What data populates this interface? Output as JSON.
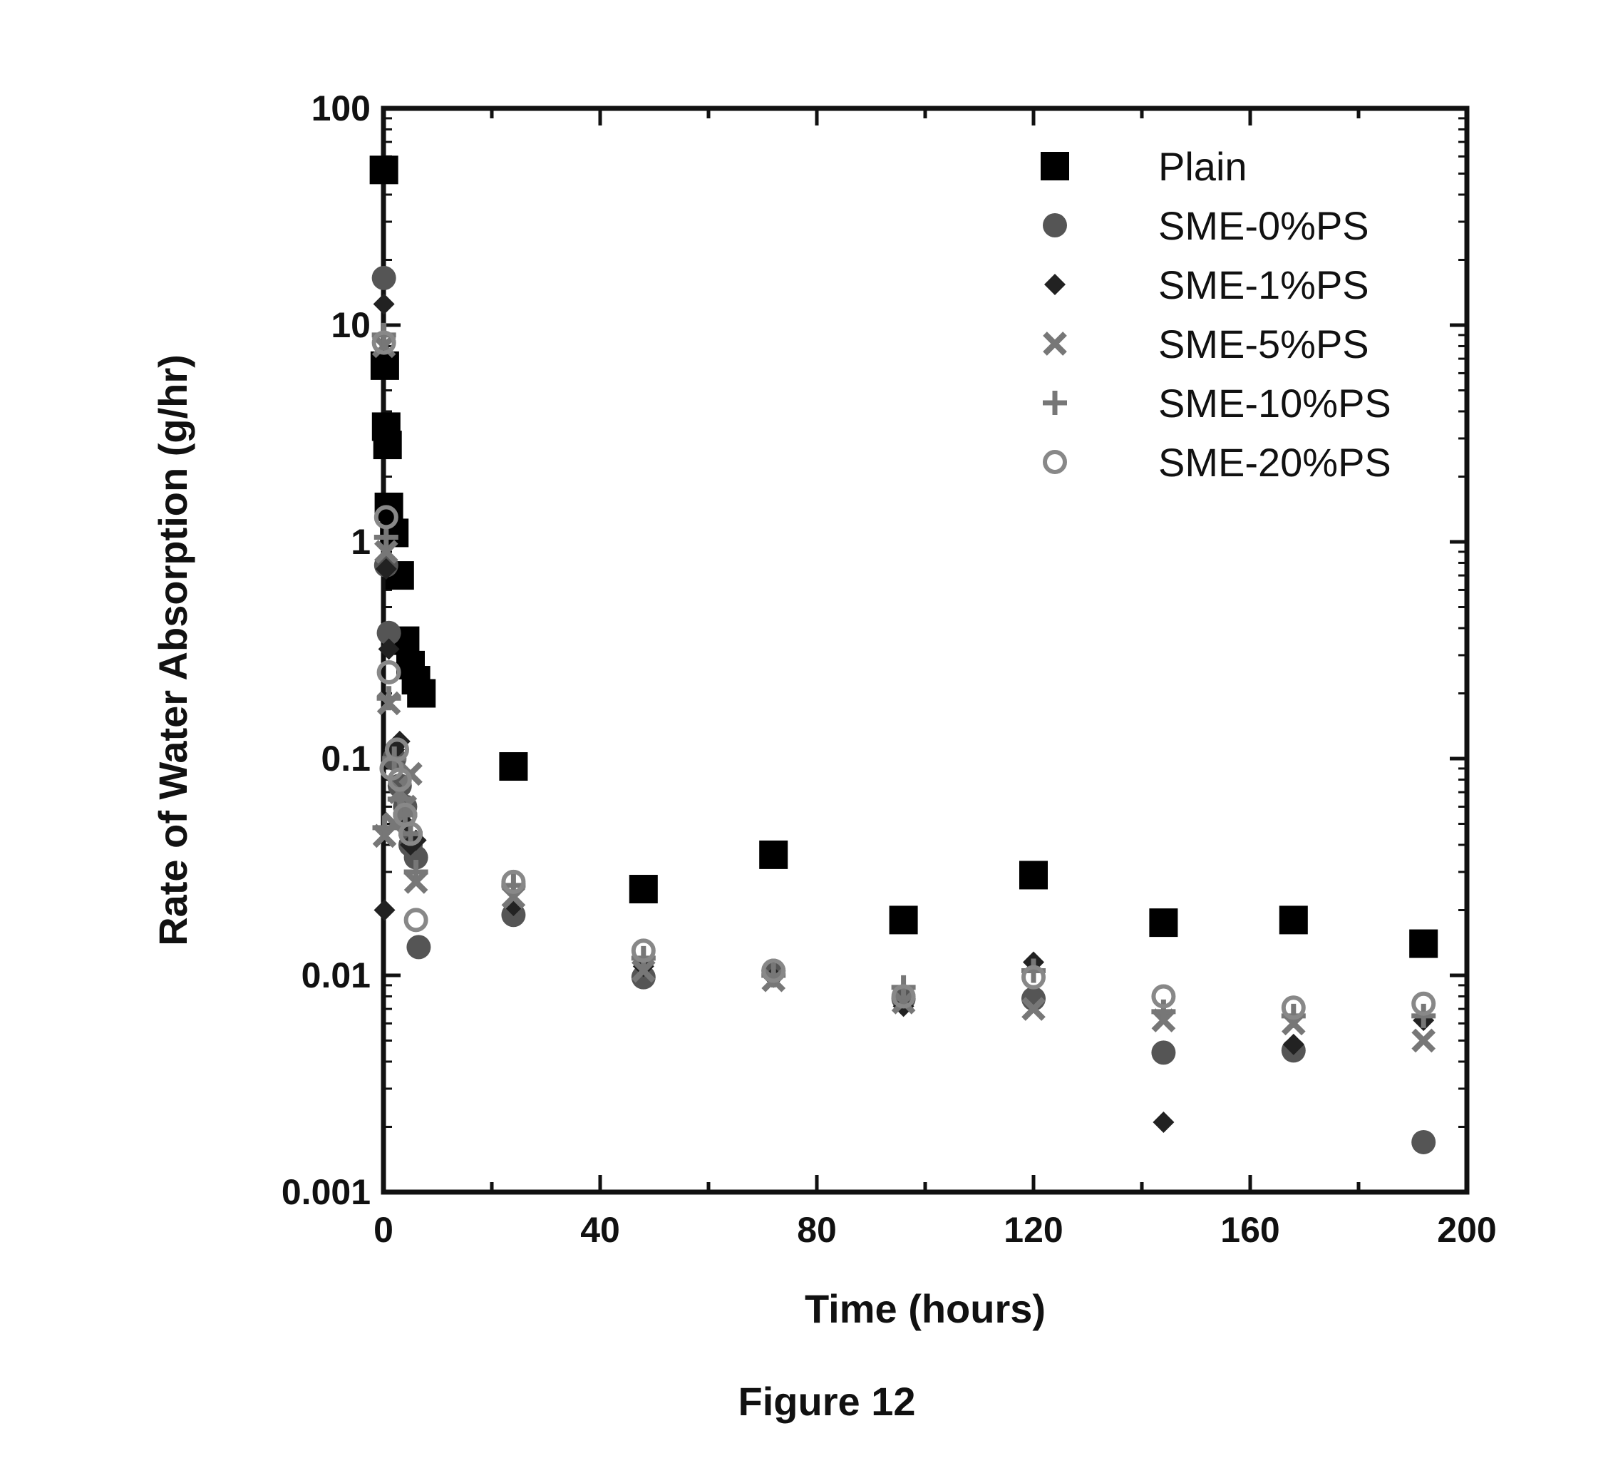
{
  "chart_data": {
    "type": "scatter",
    "caption": "Figure 12",
    "xlabel": "Time (hours)",
    "ylabel": "Rate of Water Absorption (g/hr)",
    "xlim": [
      0,
      200
    ],
    "ylim": [
      0.001,
      100
    ],
    "yscale": "log",
    "grid": false,
    "legend_position": "top-right",
    "x_ticks": [
      "0",
      "40",
      "80",
      "120",
      "160",
      "200"
    ],
    "y_ticks": [
      "0.001",
      "0.01",
      "0.1",
      "1",
      "10",
      "100"
    ],
    "series": [
      {
        "name": "Plain",
        "marker": "square",
        "color": "#000000",
        "points": [
          [
            0.083,
            52
          ],
          [
            0.25,
            6.5
          ],
          [
            0.5,
            3.4
          ],
          [
            0.75,
            2.8
          ],
          [
            1,
            1.45
          ],
          [
            2,
            1.1
          ],
          [
            3,
            0.7
          ],
          [
            4,
            0.35
          ],
          [
            5,
            0.27
          ],
          [
            6,
            0.23
          ],
          [
            7,
            0.2
          ],
          [
            24,
            0.092
          ],
          [
            48,
            0.025
          ],
          [
            72,
            0.036
          ],
          [
            96,
            0.018
          ],
          [
            120,
            0.029
          ],
          [
            144,
            0.0175
          ],
          [
            168,
            0.018
          ],
          [
            192,
            0.014
          ]
        ]
      },
      {
        "name": "SME-0%PS",
        "marker": "circle",
        "color": "#555555",
        "points": [
          [
            0.083,
            16.5
          ],
          [
            0.5,
            0.78
          ],
          [
            1,
            0.38
          ],
          [
            2,
            0.1
          ],
          [
            3,
            0.075
          ],
          [
            4,
            0.06
          ],
          [
            5,
            0.04
          ],
          [
            6,
            0.035
          ],
          [
            6.5,
            0.0135
          ],
          [
            24,
            0.019
          ],
          [
            48,
            0.0098
          ],
          [
            72,
            0.0105
          ],
          [
            96,
            0.0078
          ],
          [
            120,
            0.0078
          ],
          [
            144,
            0.0044
          ],
          [
            168,
            0.0045
          ],
          [
            192,
            0.0017
          ]
        ]
      },
      {
        "name": "SME-1%PS",
        "marker": "diamond",
        "color": "#222222",
        "points": [
          [
            0.083,
            12.5
          ],
          [
            0.5,
            0.75
          ],
          [
            1,
            0.32
          ],
          [
            2,
            0.11
          ],
          [
            3,
            0.12
          ],
          [
            4,
            0.05
          ],
          [
            5,
            0.04
          ],
          [
            6,
            0.042
          ],
          [
            0.2,
            0.02
          ],
          [
            24,
            0.021
          ],
          [
            48,
            0.011
          ],
          [
            72,
            0.0098
          ],
          [
            96,
            0.0072
          ],
          [
            120,
            0.0115
          ],
          [
            144,
            0.0021
          ],
          [
            168,
            0.0048
          ],
          [
            192,
            0.0062
          ]
        ]
      },
      {
        "name": "SME-5%PS",
        "marker": "x",
        "color": "#777777",
        "points": [
          [
            0.083,
            8
          ],
          [
            0.5,
            0.9
          ],
          [
            1,
            0.18
          ],
          [
            2,
            0.05
          ],
          [
            3,
            0.07
          ],
          [
            4,
            0.06
          ],
          [
            5,
            0.085
          ],
          [
            6,
            0.027
          ],
          [
            0.2,
            0.044
          ],
          [
            24,
            0.023
          ],
          [
            48,
            0.0105
          ],
          [
            72,
            0.0095
          ],
          [
            96,
            0.0075
          ],
          [
            120,
            0.007
          ],
          [
            144,
            0.0062
          ],
          [
            168,
            0.006
          ],
          [
            192,
            0.005
          ]
        ]
      },
      {
        "name": "SME-10%PS",
        "marker": "plus",
        "color": "#777777",
        "points": [
          [
            0.083,
            9
          ],
          [
            0.5,
            1.05
          ],
          [
            1,
            0.19
          ],
          [
            2,
            0.1
          ],
          [
            3,
            0.065
          ],
          [
            4,
            0.055
          ],
          [
            5,
            0.045
          ],
          [
            6,
            0.03
          ],
          [
            0.2,
            0.048
          ],
          [
            24,
            0.026
          ],
          [
            48,
            0.012
          ],
          [
            72,
            0.01
          ],
          [
            96,
            0.0088
          ],
          [
            120,
            0.0105
          ],
          [
            144,
            0.0068
          ],
          [
            168,
            0.0065
          ],
          [
            192,
            0.0065
          ]
        ]
      },
      {
        "name": "SME-20%PS",
        "marker": "circle-open",
        "color": "#888888",
        "points": [
          [
            0.083,
            8.3
          ],
          [
            0.5,
            1.3
          ],
          [
            1,
            0.25
          ],
          [
            1.5,
            0.09
          ],
          [
            2.5,
            0.11
          ],
          [
            3,
            0.08
          ],
          [
            4,
            0.055
          ],
          [
            5,
            0.045
          ],
          [
            6,
            0.018
          ],
          [
            24,
            0.027
          ],
          [
            48,
            0.013
          ],
          [
            72,
            0.0105
          ],
          [
            96,
            0.008
          ],
          [
            120,
            0.0098
          ],
          [
            144,
            0.008
          ],
          [
            168,
            0.0071
          ],
          [
            192,
            0.0074
          ]
        ]
      }
    ]
  }
}
